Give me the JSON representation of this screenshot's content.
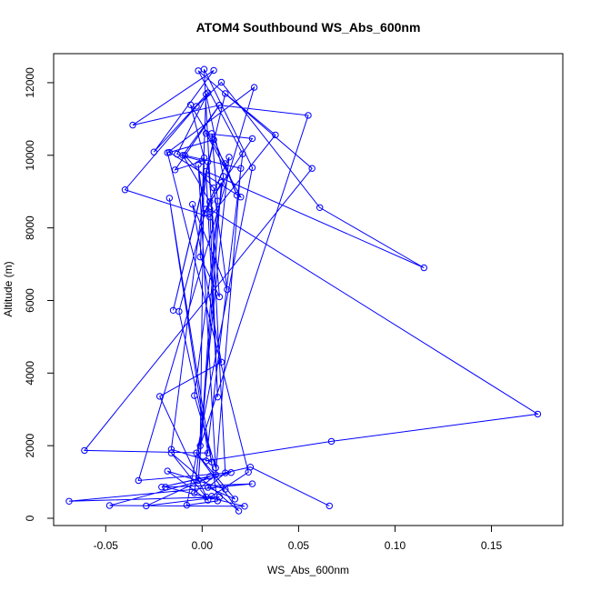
{
  "chart_data": {
    "type": "scatter",
    "title": "ATOM4 Southbound WS_Abs_600nm",
    "xlabel": "WS_Abs_600nm",
    "ylabel": "Altitude (m)",
    "xlim": [
      -0.077,
      0.187
    ],
    "ylim": [
      -200,
      12800
    ],
    "x_ticks": [
      -0.05,
      0.0,
      0.05,
      0.1,
      0.15
    ],
    "x_tick_labels": [
      "-0.05",
      "0.00",
      "0.05",
      "0.10",
      "0.15"
    ],
    "y_ticks": [
      0,
      2000,
      4000,
      6000,
      8000,
      10000,
      12000
    ],
    "y_tick_labels": [
      "0",
      "2000",
      "4000",
      "6000",
      "8000",
      "10000",
      "12000"
    ],
    "grid": false,
    "legend": "none",
    "connected": true,
    "marker": "open-circle",
    "colors": {
      "series": "#0000ff",
      "axis": "#000000"
    },
    "series": [
      {
        "x": [
          0.066,
          0.025,
          -0.021,
          0.004,
          -0.029,
          0.009,
          -0.069,
          0.026,
          -0.019,
          0.022,
          -0.048,
          0.015,
          -0.033,
          0.027,
          -0.018,
          0.024,
          0.005,
          0.002,
          -0.016,
          0.019,
          -0.003,
          0.017,
          0.003,
          0.012,
          0.001,
          0.026,
          -0.008,
          0.008,
          -0.017,
          0.003,
          -0.061,
          0.057,
          -0.002,
          0.021,
          0.002,
          0.067,
          0.174,
          0.004,
          0.008,
          0.002,
          0.115,
          0.061,
          0.01,
          -0.003,
          -0.04,
          0.004,
          0.038,
          0.012,
          -0.015,
          0.006,
          -0.017,
          0.02,
          0.002,
          0.026,
          0.004,
          -0.01,
          0.009,
          -0.014,
          0.0,
          -0.013,
          0.003,
          -0.025,
          0.006,
          -0.036,
          0.009,
          0.055,
          -0.001,
          0.001,
          -0.006,
          0.012,
          0.018,
          0.005,
          0.008,
          -0.002,
          0.01,
          0.001,
          -0.002,
          0.007,
          -0.004,
          0.011,
          0.002,
          -0.001,
          0.009,
          0.003,
          -0.016,
          0.005,
          -0.012,
          0.002,
          0.014,
          -0.004,
          0.007,
          0.02,
          -0.009,
          0.006,
          0.013,
          -0.005,
          0.01,
          -0.022,
          0.003,
          -0.018,
          0.012
        ],
        "y": [
          340,
          1410,
          860,
          1150,
          340,
          590,
          470,
          950,
          860,
          330,
          350,
          1260,
          1040,
          11870,
          10070,
          1270,
          610,
          590,
          1800,
          200,
          1800,
          530,
          850,
          1250,
          12370,
          9660,
          360,
          480,
          8820,
          1800,
          1870,
          9640,
          12330,
          10040,
          1580,
          2120,
          2870,
          8520,
          3340,
          9560,
          6900,
          8560,
          12010,
          11350,
          9050,
          8300,
          10560,
          11700,
          5730,
          10430,
          10080,
          8850,
          10600,
          10460,
          8720,
          10000,
          11380,
          9600,
          9840,
          10030,
          11720,
          10090,
          12340,
          10830,
          11380,
          11100,
          2000,
          9930,
          11390,
          9770,
          8900,
          10600,
          8740,
          1040,
          9250,
          8400,
          9750,
          1390,
          3380,
          9420,
          11680,
          7200,
          6100,
          9820,
          1900,
          1550,
          5700,
          8520,
          9950,
          700,
          1200,
          9640,
          10000,
          9100,
          6300,
          8650,
          4300,
          3360,
          500,
          1300,
          800
        ]
      }
    ]
  }
}
